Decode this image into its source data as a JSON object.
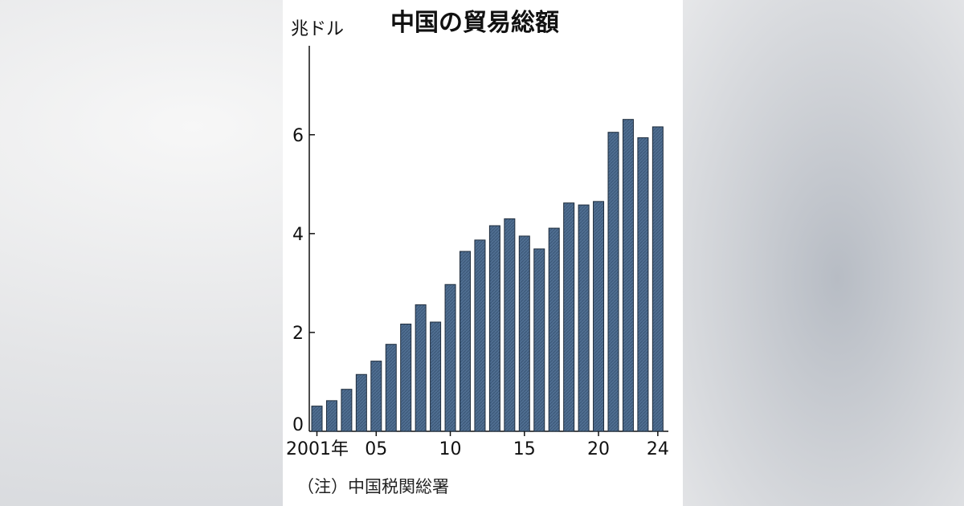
{
  "chart_data": {
    "type": "bar",
    "title": "中国の貿易総額",
    "unit_label": "兆ドル",
    "source_note": "（注）中国税関総署",
    "bar_color": "#4f6e91",
    "ylim": [
      0,
      7.8
    ],
    "y_ticks": [
      {
        "value": 0,
        "label": "0"
      },
      {
        "value": 2,
        "label": "2"
      },
      {
        "value": 4,
        "label": "4"
      },
      {
        "value": 6,
        "label": "6"
      }
    ],
    "x_ticks": [
      {
        "year": 2001,
        "label": "2001年"
      },
      {
        "year": 2005,
        "label": "05"
      },
      {
        "year": 2010,
        "label": "10"
      },
      {
        "year": 2015,
        "label": "15"
      },
      {
        "year": 2020,
        "label": "20"
      },
      {
        "year": 2024,
        "label": "24"
      }
    ],
    "categories": [
      2001,
      2002,
      2003,
      2004,
      2005,
      2006,
      2007,
      2008,
      2009,
      2010,
      2011,
      2012,
      2013,
      2014,
      2015,
      2016,
      2017,
      2018,
      2019,
      2020,
      2021,
      2022,
      2023,
      2024
    ],
    "values": [
      0.51,
      0.62,
      0.85,
      1.15,
      1.42,
      1.76,
      2.17,
      2.56,
      2.21,
      2.97,
      3.64,
      3.87,
      4.16,
      4.3,
      3.95,
      3.69,
      4.11,
      4.62,
      4.58,
      4.65,
      6.05,
      6.31,
      5.94,
      6.16
    ]
  }
}
